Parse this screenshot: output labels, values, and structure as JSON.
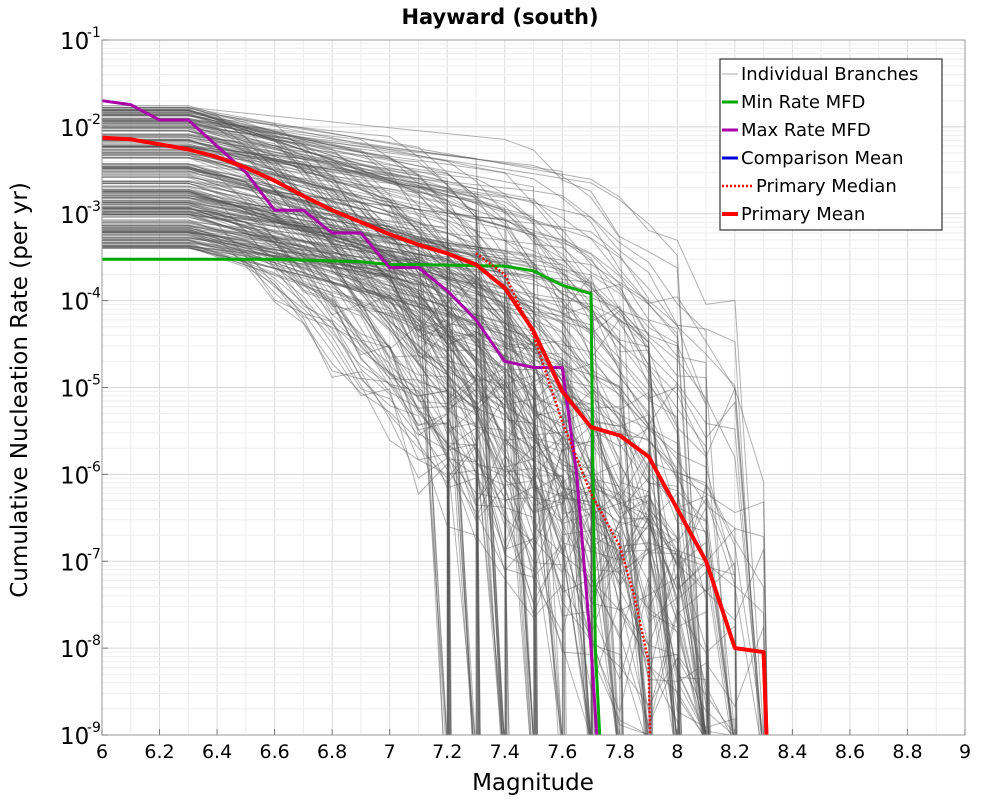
{
  "chart_data": {
    "type": "line",
    "title": "Hayward (south)",
    "xlabel": "Magnitude",
    "ylabel": "Cumulative Nucleation Rate (per yr)",
    "xlim": [
      6,
      9
    ],
    "ylim": [
      1e-09,
      0.1
    ],
    "yscale": "log",
    "grid": true,
    "legend_position": "top-right",
    "x_ticks": [
      "6",
      "6.2",
      "6.4",
      "6.6",
      "6.8",
      "7",
      "7.2",
      "7.4",
      "7.6",
      "7.8",
      "8",
      "8.2",
      "8.4",
      "8.6",
      "8.8",
      "9"
    ],
    "y_ticks": [
      {
        "base": "10",
        "exp": "-1"
      },
      {
        "base": "10",
        "exp": "-2"
      },
      {
        "base": "10",
        "exp": "-3"
      },
      {
        "base": "10",
        "exp": "-4"
      },
      {
        "base": "10",
        "exp": "-5"
      },
      {
        "base": "10",
        "exp": "-6"
      },
      {
        "base": "10",
        "exp": "-7"
      },
      {
        "base": "10",
        "exp": "-8"
      },
      {
        "base": "10",
        "exp": "-9"
      }
    ],
    "series": [
      {
        "name": "Individual Branches",
        "color": "#555555",
        "style": "thin",
        "note_count_drawn": 0
      },
      {
        "name": "Min Rate MFD",
        "color": "#00aa00",
        "style": "solid",
        "x": [
          6.0,
          6.6,
          6.9,
          7.0,
          7.1,
          7.4,
          7.5,
          7.6,
          7.7,
          7.705,
          7.715,
          7.73
        ],
        "y": [
          0.0003,
          0.0003,
          0.00028,
          0.00026,
          0.00026,
          0.00025,
          0.00022,
          0.00015,
          0.00012,
          3e-06,
          1e-08,
          1e-09
        ]
      },
      {
        "name": "Max Rate MFD",
        "color": "#aa00aa",
        "style": "solid",
        "x": [
          6.0,
          6.1,
          6.2,
          6.3,
          6.4,
          6.5,
          6.6,
          6.7,
          6.8,
          6.9,
          7.0,
          7.1,
          7.2,
          7.3,
          7.4,
          7.5,
          7.6,
          7.65,
          7.7,
          7.72
        ],
        "y": [
          0.02,
          0.018,
          0.012,
          0.012,
          0.006,
          0.003,
          0.0011,
          0.0011,
          0.0006,
          0.0006,
          0.00024,
          0.00024,
          0.00013,
          6e-05,
          2e-05,
          1.7e-05,
          1.7e-05,
          1e-06,
          1e-08,
          1e-09
        ]
      },
      {
        "name": "Comparison Mean",
        "color": "#0000dd",
        "style": "solid"
      },
      {
        "name": "Primary Median",
        "color": "#ff0000",
        "style": "dotted",
        "x": [
          7.3,
          7.4,
          7.5,
          7.6,
          7.7,
          7.8,
          7.85,
          7.9,
          7.905
        ],
        "y": [
          0.00035,
          0.0002,
          4e-05,
          4e-06,
          6e-07,
          1.5e-07,
          4e-08,
          7e-09,
          1e-09
        ]
      },
      {
        "name": "Primary Mean",
        "color": "#ff0000",
        "style": "thick",
        "x": [
          6.0,
          6.1,
          6.2,
          6.3,
          6.4,
          6.5,
          6.6,
          6.7,
          6.8,
          6.9,
          7.0,
          7.1,
          7.2,
          7.3,
          7.4,
          7.5,
          7.6,
          7.7,
          7.8,
          7.9,
          8.0,
          8.1,
          8.2,
          8.3,
          8.31
        ],
        "y": [
          0.0075,
          0.0072,
          0.0063,
          0.0055,
          0.0045,
          0.0034,
          0.0024,
          0.0016,
          0.0011,
          0.0008,
          0.00058,
          0.00044,
          0.00035,
          0.00026,
          0.00014,
          4.5e-05,
          9e-06,
          3.5e-06,
          2.8e-06,
          1.6e-06,
          4e-07,
          1e-07,
          1e-08,
          9e-09,
          1e-09
        ]
      }
    ]
  }
}
